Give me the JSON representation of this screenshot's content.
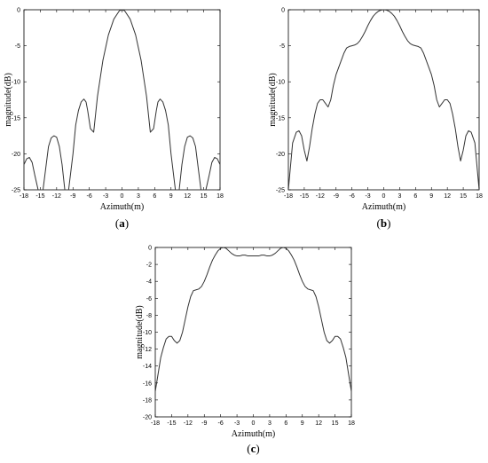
{
  "chart_data": [
    {
      "type": "line",
      "panel_label": "a",
      "xlabel": "Azimuth(m)",
      "ylabel": "magnitude(dB)",
      "xlim": [
        -18,
        18
      ],
      "ylim": [
        -25,
        0
      ],
      "xticks": [
        -18,
        -15,
        -12,
        -9,
        -6,
        -3,
        0,
        3,
        6,
        9,
        12,
        15,
        18
      ],
      "yticks": [
        -25,
        -20,
        -15,
        -10,
        -5,
        0
      ],
      "grid": false,
      "series": [
        {
          "x": [
            -18,
            -17.5,
            -17,
            -16.5,
            -16,
            -15.4,
            -14.5,
            -14,
            -13.5,
            -13,
            -12.5,
            -12,
            -11.5,
            -11,
            -10.5,
            -9.8,
            -9,
            -8.5,
            -8,
            -7.5,
            -7,
            -6.6,
            -6.3,
            -5.8,
            -5.2,
            -4.5,
            -3.5,
            -2.5,
            -1.5,
            -0.5,
            0,
            0.5,
            1.5,
            2.5,
            3.5,
            4.5,
            5.2,
            5.8,
            6.3,
            6.6,
            7,
            7.5,
            8,
            8.5,
            9,
            9.8,
            10.5,
            11,
            11.5,
            12,
            12.5,
            13,
            13.5,
            14,
            14.5,
            15.4,
            16,
            16.5,
            17,
            17.5,
            18
          ],
          "y": [
            -21.5,
            -20.7,
            -20.5,
            -21.2,
            -23,
            -25,
            -25,
            -22,
            -19,
            -17.8,
            -17.5,
            -17.7,
            -19,
            -21.5,
            -25,
            -25,
            -20,
            -16,
            -14,
            -12.8,
            -12.4,
            -12.8,
            -14,
            -16.5,
            -17,
            -12,
            -7,
            -3.5,
            -1.3,
            -0.15,
            0,
            -0.15,
            -1.3,
            -3.5,
            -7,
            -12,
            -17,
            -16.5,
            -14,
            -12.8,
            -12.4,
            -12.8,
            -14,
            -16,
            -20,
            -25,
            -25,
            -21.5,
            -19,
            -17.7,
            -17.5,
            -17.8,
            -19,
            -22,
            -25,
            -25,
            -23,
            -21.2,
            -20.5,
            -20.7,
            -21.5
          ]
        }
      ]
    },
    {
      "type": "line",
      "panel_label": "b",
      "xlabel": "Azimuth(m)",
      "ylabel": "magnitude(dB)",
      "xlim": [
        -18,
        18
      ],
      "ylim": [
        -25,
        0
      ],
      "xticks": [
        -18,
        -15,
        -12,
        -9,
        -6,
        -3,
        0,
        3,
        6,
        9,
        12,
        15,
        18
      ],
      "yticks": [
        -25,
        -20,
        -15,
        -10,
        -5,
        0
      ],
      "grid": false,
      "series": [
        {
          "x": [
            -18,
            -17.2,
            -16.5,
            -16,
            -15.5,
            -15,
            -14.5,
            -14,
            -13.5,
            -13,
            -12.5,
            -12,
            -11.5,
            -11,
            -10.5,
            -10,
            -9.5,
            -9,
            -8.5,
            -8,
            -7.5,
            -7,
            -6.5,
            -6,
            -5.5,
            -5,
            -4.5,
            -4,
            -3.5,
            -3,
            -2.5,
            -2,
            -1.5,
            -1,
            -0.5,
            0,
            0.5,
            1,
            1.5,
            2,
            2.5,
            3,
            3.5,
            4,
            4.5,
            5,
            5.5,
            6,
            6.5,
            7,
            7.5,
            8,
            8.5,
            9,
            9.5,
            10,
            10.5,
            11,
            11.5,
            12,
            12.5,
            13,
            13.5,
            14,
            14.5,
            15,
            15.5,
            16,
            16.5,
            17.2,
            18
          ],
          "y": [
            -25,
            -18.5,
            -17,
            -16.8,
            -17.5,
            -19.5,
            -21,
            -19,
            -16.5,
            -14.5,
            -13,
            -12.5,
            -12.5,
            -13,
            -13.5,
            -12.5,
            -10.5,
            -9,
            -8,
            -7,
            -6,
            -5.3,
            -5.1,
            -5,
            -4.9,
            -4.7,
            -4.3,
            -3.7,
            -3,
            -2.2,
            -1.5,
            -0.9,
            -0.5,
            -0.2,
            -0.05,
            0,
            -0.05,
            -0.2,
            -0.5,
            -0.9,
            -1.5,
            -2.2,
            -3,
            -3.7,
            -4.3,
            -4.7,
            -4.9,
            -5,
            -5.1,
            -5.3,
            -6,
            -7,
            -8,
            -9,
            -10.5,
            -12.5,
            -13.5,
            -13,
            -12.5,
            -12.5,
            -13,
            -14.5,
            -16.5,
            -19,
            -21,
            -19.5,
            -17.5,
            -16.8,
            -17,
            -18.5,
            -25
          ]
        }
      ]
    },
    {
      "type": "line",
      "panel_label": "c",
      "xlabel": "Azimuth(m)",
      "ylabel": "magnitude(dB)",
      "xlim": [
        -18,
        18
      ],
      "ylim": [
        -20,
        0
      ],
      "xticks": [
        -18,
        -15,
        -12,
        -9,
        -6,
        -3,
        0,
        3,
        6,
        9,
        12,
        15,
        18
      ],
      "yticks": [
        -20,
        -18,
        -16,
        -14,
        -12,
        -10,
        -8,
        -6,
        -4,
        -2,
        0
      ],
      "grid": false,
      "series": [
        {
          "x": [
            -18,
            -17.5,
            -17,
            -16.5,
            -16,
            -15.5,
            -15,
            -14.5,
            -14,
            -13.5,
            -13,
            -12.5,
            -12,
            -11.5,
            -11,
            -10.5,
            -10,
            -9.5,
            -9,
            -8.5,
            -8,
            -7.5,
            -7,
            -6.5,
            -6,
            -5.5,
            -5,
            -4.5,
            -4,
            -3.5,
            -3,
            -2.5,
            -2,
            -1.5,
            -1,
            -0.5,
            0,
            0.5,
            1,
            1.5,
            2,
            2.5,
            3,
            3.5,
            4,
            4.5,
            5,
            5.5,
            6,
            6.5,
            7,
            7.5,
            8,
            8.5,
            9,
            9.5,
            10,
            10.5,
            11,
            11.5,
            12,
            12.5,
            13,
            13.5,
            14,
            14.5,
            15,
            15.5,
            16,
            16.5,
            17,
            17.5,
            18
          ],
          "y": [
            -17,
            -15,
            -13,
            -11.8,
            -10.8,
            -10.5,
            -10.5,
            -11,
            -11.3,
            -11,
            -10,
            -8.5,
            -7,
            -5.8,
            -5.1,
            -5,
            -4.9,
            -4.6,
            -4,
            -3.2,
            -2.3,
            -1.5,
            -0.9,
            -0.4,
            -0.1,
            0,
            -0.1,
            -0.4,
            -0.7,
            -0.9,
            -1,
            -1,
            -0.9,
            -0.9,
            -1,
            -1,
            -1,
            -1,
            -1,
            -0.9,
            -0.9,
            -1,
            -1,
            -0.9,
            -0.7,
            -0.4,
            -0.1,
            0,
            -0.1,
            -0.4,
            -0.9,
            -1.5,
            -2.3,
            -3.2,
            -4,
            -4.6,
            -4.9,
            -5,
            -5.1,
            -5.8,
            -7,
            -8.5,
            -10,
            -11,
            -11.3,
            -11,
            -10.5,
            -10.5,
            -10.8,
            -11.8,
            -13,
            -15,
            -17
          ]
        }
      ]
    }
  ]
}
